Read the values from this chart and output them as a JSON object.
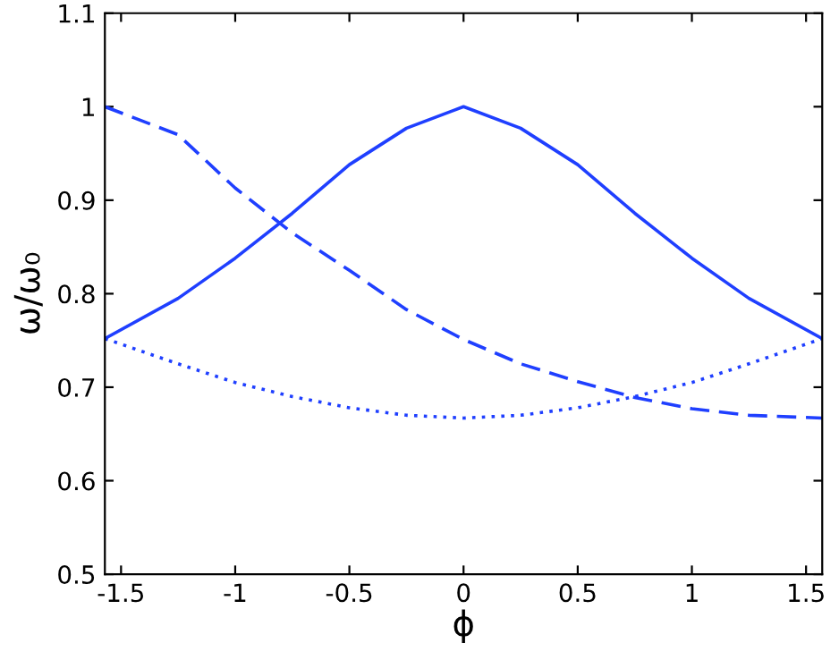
{
  "chart_data": {
    "type": "line",
    "xlabel": "ϕ",
    "ylabel": "ω/ω₀",
    "xlim": [
      -1.5708,
      1.5708
    ],
    "ylim": [
      0.5,
      1.1
    ],
    "xticks": [
      -1.5,
      -1,
      -0.5,
      0,
      0.5,
      1,
      1.5
    ],
    "yticks": [
      0.5,
      0.6,
      0.7,
      0.8,
      0.9,
      1,
      1.1
    ],
    "x": [
      -1.5708,
      -1.25,
      -1.0,
      -0.75,
      -0.5,
      -0.25,
      0,
      0.25,
      0.5,
      0.75,
      1.0,
      1.25,
      1.5708
    ],
    "grid": false,
    "legend": false,
    "series": [
      {
        "color": "#1f3fff",
        "line_style": "solid",
        "values": [
          0.752,
          0.795,
          0.838,
          0.886,
          0.938,
          0.977,
          1.0,
          0.977,
          0.938,
          0.886,
          0.838,
          0.795,
          0.752
        ]
      },
      {
        "color": "#1f3fff",
        "line_style": "dashed",
        "values": [
          1.0,
          0.97,
          0.913,
          0.865,
          0.825,
          0.783,
          0.751,
          0.725,
          0.706,
          0.689,
          0.677,
          0.67,
          0.667
        ]
      },
      {
        "color": "#1f3fff",
        "line_style": "dotted",
        "values": [
          0.752,
          0.725,
          0.705,
          0.69,
          0.678,
          0.67,
          0.667,
          0.67,
          0.678,
          0.69,
          0.705,
          0.725,
          0.752
        ]
      }
    ]
  }
}
